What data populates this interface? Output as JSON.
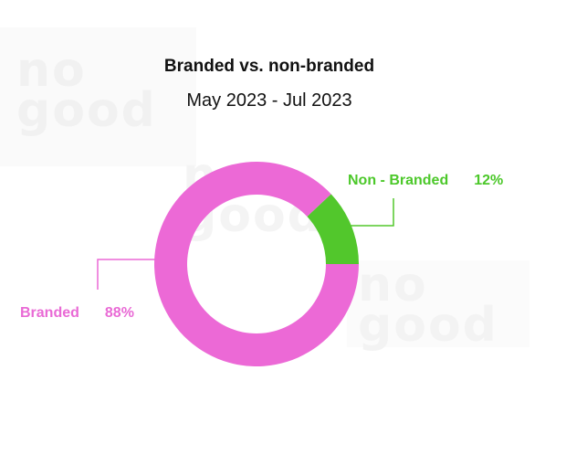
{
  "chart_data": {
    "type": "pie",
    "subtype": "donut",
    "title": "Branded vs. non-branded",
    "subtitle": "May 2023 - Jul 2023",
    "slices": [
      {
        "label": "Non - Branded",
        "value": 12,
        "value_label": "12%",
        "color": "#52c72c"
      },
      {
        "label": "Branded",
        "value": 88,
        "value_label": "88%",
        "color": "#ec69d6"
      }
    ]
  },
  "watermark": [
    "no",
    "good"
  ]
}
